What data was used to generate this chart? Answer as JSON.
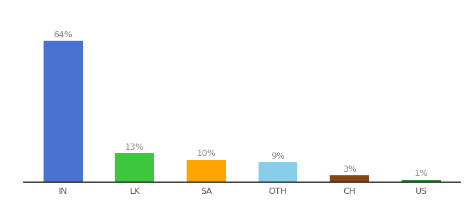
{
  "categories": [
    "IN",
    "LK",
    "SA",
    "OTH",
    "CH",
    "US"
  ],
  "values": [
    64,
    13,
    10,
    9,
    3,
    1
  ],
  "labels": [
    "64%",
    "13%",
    "10%",
    "9%",
    "3%",
    "1%"
  ],
  "bar_colors": [
    "#4A72D0",
    "#3CC73C",
    "#FFA500",
    "#87CEEB",
    "#8B4513",
    "#2E8B2E"
  ],
  "label_fontsize": 9,
  "tick_fontsize": 9,
  "ylim": [
    0,
    75
  ],
  "bar_width": 0.55,
  "label_color": "#888888",
  "tick_color": "#555555",
  "background_color": "#ffffff",
  "spine_color": "#222222"
}
